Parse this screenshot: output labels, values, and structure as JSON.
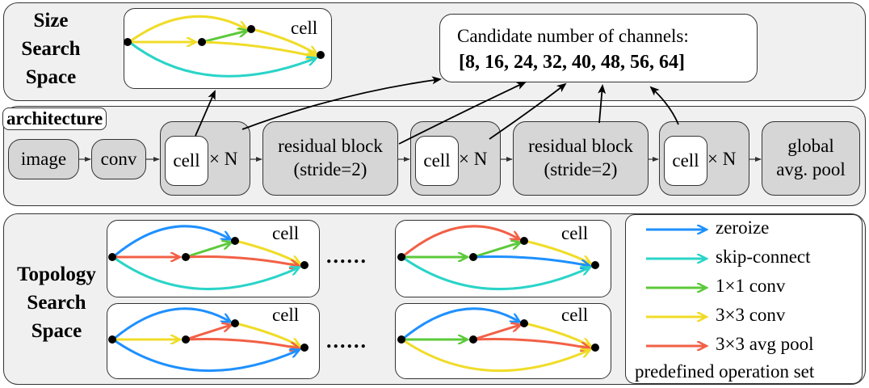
{
  "size_space": {
    "title_line1": "Size",
    "title_line2": "Search",
    "title_line3": "Space",
    "cell_label": "cell",
    "candidate_title": "Candidate number of channels:",
    "candidate_values": "[8, 16, 24, 32, 40, 48, 56, 64]"
  },
  "architecture": {
    "label": "architecture",
    "image": "image",
    "conv": "conv",
    "cell": "cell",
    "times_n": "× N",
    "residual_line1": "residual block",
    "residual_line2": "(stride=2)",
    "global_line1": "global",
    "global_line2": "avg. pool"
  },
  "topology_space": {
    "title_line1": "Topology",
    "title_line2": "Search",
    "title_line3": "Space",
    "cell_label": "cell",
    "ellipsis": "......"
  },
  "legend": {
    "items": [
      {
        "label": "zeroize",
        "color": "#1e90ff"
      },
      {
        "label": "skip-connect",
        "color": "#2ad4c8"
      },
      {
        "label": "1×1 conv",
        "color": "#5cc93a"
      },
      {
        "label": "3×3 conv",
        "color": "#f0dc28"
      },
      {
        "label": "3×3 avg pool",
        "color": "#f26046"
      }
    ],
    "footer": "predefined operation set"
  }
}
